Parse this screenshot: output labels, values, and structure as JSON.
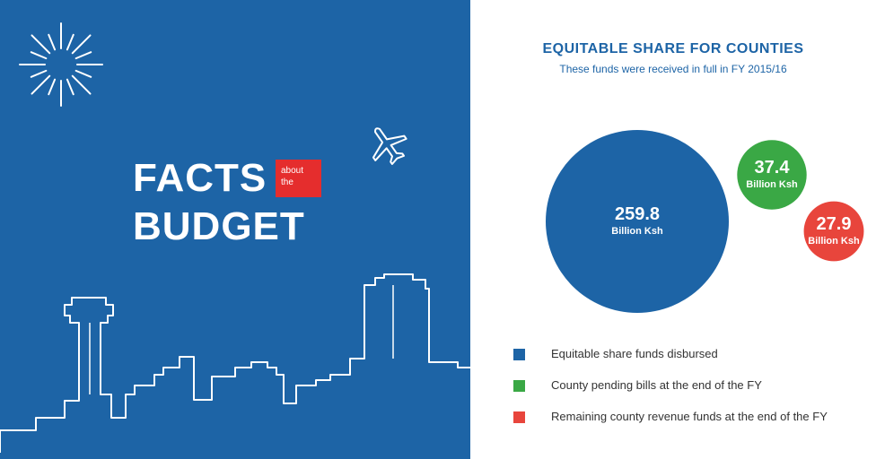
{
  "banner": {
    "facts": "FACTS",
    "about_line1": "about",
    "about_line2": "the",
    "budget": "BUDGET"
  },
  "chart_data": {
    "type": "bubble",
    "title": "EQUITABLE SHARE FOR COUNTIES",
    "subtitle": "These funds were received in full in FY 2015/16",
    "unit": "Billion Ksh",
    "series": [
      {
        "name": "Equitable share funds disbursed",
        "value": 259.8,
        "label": "259.8",
        "color": "#1d64a6"
      },
      {
        "name": "County pending bills at the end of the FY",
        "value": 37.4,
        "label": "37.4",
        "color": "#3aa845"
      },
      {
        "name": "Remaining county revenue funds at the end of the FY",
        "value": 27.9,
        "label": "27.9",
        "color": "#e8453c"
      }
    ],
    "legend_position": "bottom-left"
  },
  "colors": {
    "panel_blue": "#1d64a6",
    "accent_red": "#e52d2d",
    "white": "#ffffff"
  },
  "icons": [
    "sunburst-icon",
    "airplane-icon",
    "city-skyline-icon"
  ]
}
